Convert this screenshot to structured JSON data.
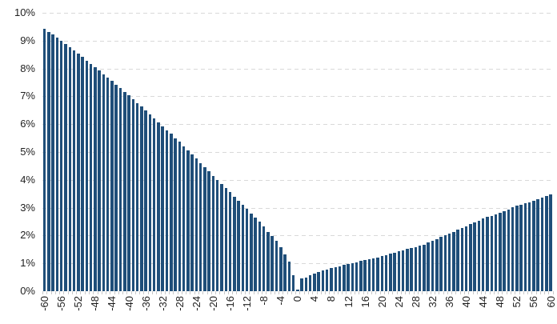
{
  "chart_data": {
    "type": "bar",
    "title": "",
    "xlabel": "",
    "ylabel": "",
    "ylim": [
      0,
      10
    ],
    "grid": "horizontal-dashed",
    "legend": "none",
    "x": [
      -60,
      -59,
      -58,
      -57,
      -56,
      -55,
      -54,
      -53,
      -52,
      -51,
      -50,
      -49,
      -48,
      -47,
      -46,
      -45,
      -44,
      -43,
      -42,
      -41,
      -40,
      -39,
      -38,
      -37,
      -36,
      -35,
      -34,
      -33,
      -32,
      -31,
      -30,
      -29,
      -28,
      -27,
      -26,
      -25,
      -24,
      -23,
      -22,
      -21,
      -20,
      -19,
      -18,
      -17,
      -16,
      -15,
      -14,
      -13,
      -12,
      -11,
      -10,
      -9,
      -8,
      -7,
      -6,
      -5,
      -4,
      -3,
      -2,
      -1,
      0,
      1,
      2,
      3,
      4,
      5,
      6,
      7,
      8,
      9,
      10,
      11,
      12,
      13,
      14,
      15,
      16,
      17,
      18,
      19,
      20,
      21,
      22,
      23,
      24,
      25,
      26,
      27,
      28,
      29,
      30,
      31,
      32,
      33,
      34,
      35,
      36,
      37,
      38,
      39,
      40,
      41,
      42,
      43,
      44,
      45,
      46,
      47,
      48,
      49,
      50,
      51,
      52,
      53,
      54,
      55,
      56,
      57,
      58,
      59,
      60
    ],
    "values": [
      9.43,
      9.32,
      9.21,
      9.1,
      8.99,
      8.87,
      8.76,
      8.64,
      8.53,
      8.41,
      8.29,
      8.17,
      8.05,
      7.92,
      7.8,
      7.67,
      7.55,
      7.42,
      7.29,
      7.16,
      7.03,
      6.9,
      6.76,
      6.63,
      6.49,
      6.35,
      6.21,
      6.07,
      5.93,
      5.79,
      5.65,
      5.5,
      5.36,
      5.21,
      5.06,
      4.91,
      4.76,
      4.61,
      4.46,
      4.3,
      4.15,
      3.99,
      3.85,
      3.72,
      3.55,
      3.39,
      3.24,
      3.1,
      2.95,
      2.8,
      2.64,
      2.49,
      2.33,
      2.13,
      1.98,
      1.8,
      1.58,
      1.33,
      1.07,
      0.58,
      0.07,
      0.45,
      0.5,
      0.57,
      0.63,
      0.7,
      0.74,
      0.78,
      0.82,
      0.86,
      0.9,
      0.94,
      0.97,
      1.01,
      1.04,
      1.08,
      1.12,
      1.15,
      1.19,
      1.22,
      1.26,
      1.3,
      1.34,
      1.38,
      1.43,
      1.47,
      1.51,
      1.55,
      1.59,
      1.63,
      1.67,
      1.74,
      1.8,
      1.87,
      1.94,
      2.0,
      2.07,
      2.14,
      2.21,
      2.27,
      2.34,
      2.41,
      2.48,
      2.54,
      2.61,
      2.66,
      2.71,
      2.76,
      2.81,
      2.88,
      2.94,
      3.01,
      3.07,
      3.11,
      3.16,
      3.2,
      3.24,
      3.3,
      3.35,
      3.41,
      3.48
    ],
    "y_ticks": [
      "0%",
      "1%",
      "2%",
      "3%",
      "4%",
      "5%",
      "6%",
      "7%",
      "8%",
      "9%",
      "10%"
    ],
    "x_tick_step": 4,
    "x_tick_labels": [
      "-60",
      "-56",
      "-52",
      "-48",
      "-44",
      "-40",
      "-36",
      "-32",
      "-28",
      "-24",
      "-20",
      "-16",
      "-12",
      "-8",
      "-4",
      "0",
      "4",
      "8",
      "12",
      "16",
      "20",
      "24",
      "28",
      "32",
      "36",
      "40",
      "44",
      "48",
      "52",
      "56",
      "60"
    ],
    "bar_color": "#1F4E79",
    "gridline_color": "#D9D9D9",
    "tick_color": "#C8C8C8",
    "label_color": "#1F1F1F",
    "background": "#FFFFFF"
  }
}
